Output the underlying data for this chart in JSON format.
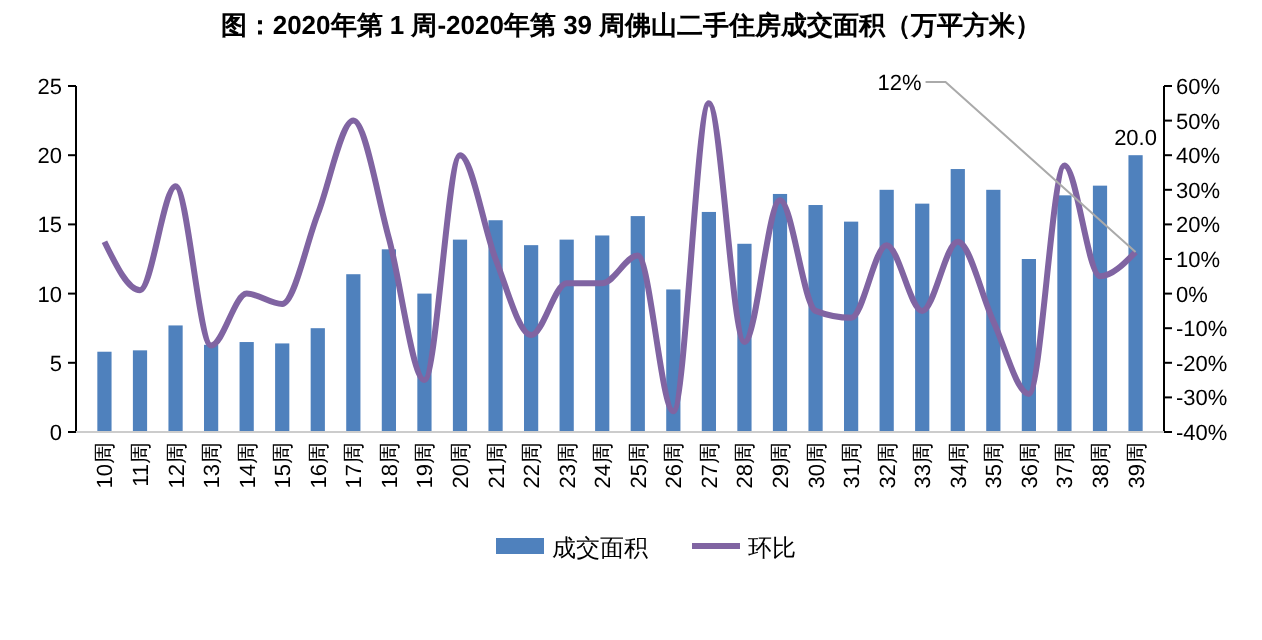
{
  "chart_data": {
    "type": "bar",
    "title": "图：2020年第 1 周-2020年第 39 周佛山二手住房成交面积（万平方米）",
    "categories": [
      "10周",
      "11周",
      "12周",
      "13周",
      "14周",
      "15周",
      "16周",
      "17周",
      "18周",
      "19周",
      "20周",
      "21周",
      "22周",
      "23周",
      "24周",
      "25周",
      "26周",
      "27周",
      "28周",
      "29周",
      "30周",
      "31周",
      "32周",
      "33周",
      "34周",
      "35周",
      "36周",
      "37周",
      "38周",
      "39周"
    ],
    "series": [
      {
        "name": "成交面积",
        "color": "#4f81bd",
        "values": [
          5.8,
          5.9,
          7.7,
          6.3,
          6.5,
          6.4,
          7.5,
          11.4,
          13.2,
          10.0,
          13.9,
          15.3,
          13.5,
          13.9,
          14.2,
          15.6,
          10.3,
          15.9,
          13.6,
          17.2,
          16.4,
          15.2,
          17.5,
          16.5,
          19.0,
          17.5,
          12.5,
          17.1,
          17.8,
          20.0
        ],
        "value_labels": [
          null,
          null,
          null,
          null,
          null,
          null,
          null,
          null,
          null,
          null,
          null,
          null,
          null,
          null,
          null,
          null,
          null,
          null,
          null,
          null,
          null,
          null,
          null,
          null,
          null,
          null,
          null,
          null,
          null,
          "20.0"
        ]
      },
      {
        "name": "环比",
        "type": "line",
        "axis": "y2",
        "color": "#8064a2",
        "values": [
          15,
          1,
          31,
          -15,
          0,
          -3,
          23,
          50,
          16,
          -25,
          40,
          10,
          -12,
          3,
          3,
          11,
          -34,
          55,
          -14,
          27,
          -5,
          -7,
          14,
          -5,
          15,
          -8,
          -29,
          37,
          5,
          12
        ],
        "value_labels": [
          null,
          null,
          null,
          null,
          null,
          null,
          null,
          null,
          null,
          null,
          null,
          null,
          null,
          null,
          null,
          null,
          null,
          null,
          null,
          null,
          null,
          null,
          null,
          null,
          null,
          null,
          null,
          null,
          null,
          "12%"
        ]
      }
    ],
    "ylim": [
      0,
      25
    ],
    "yticks": [
      0,
      5,
      10,
      15,
      20,
      25
    ],
    "y2lim": [
      -40,
      60
    ],
    "y2ticks": [
      {
        "value": -40,
        "label": "-40%"
      },
      {
        "value": -30,
        "label": "-30%"
      },
      {
        "value": -20,
        "label": "-20%"
      },
      {
        "value": -10,
        "label": "-10%"
      },
      {
        "value": 0,
        "label": "0%"
      },
      {
        "value": 10,
        "label": "10%"
      },
      {
        "value": 20,
        "label": "20%"
      },
      {
        "value": 30,
        "label": "30%"
      },
      {
        "value": 40,
        "label": "40%"
      },
      {
        "value": 50,
        "label": "50%"
      },
      {
        "value": 60,
        "label": "60%"
      }
    ],
    "grid": false,
    "legend": "bottom",
    "marker": "none",
    "line_style": "solid"
  }
}
